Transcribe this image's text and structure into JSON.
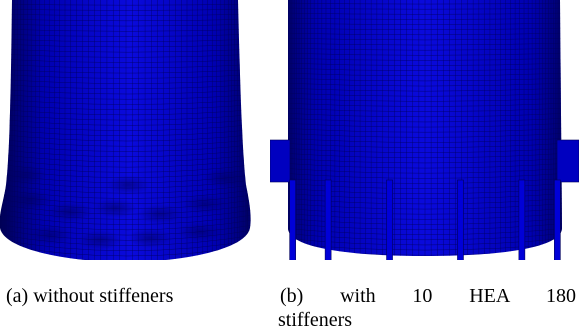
{
  "figure": {
    "panel_a": {
      "caption": "(a) without stiffeners",
      "mesh_color": "#0000c8",
      "mesh_line_color": "#00005a"
    },
    "panel_b": {
      "caption_line1": "(b) with 10 HEA 180",
      "caption_line2": "stiffeners",
      "mesh_color": "#0000c8",
      "mesh_line_color": "#00005a",
      "stiffener_count": 10
    }
  }
}
